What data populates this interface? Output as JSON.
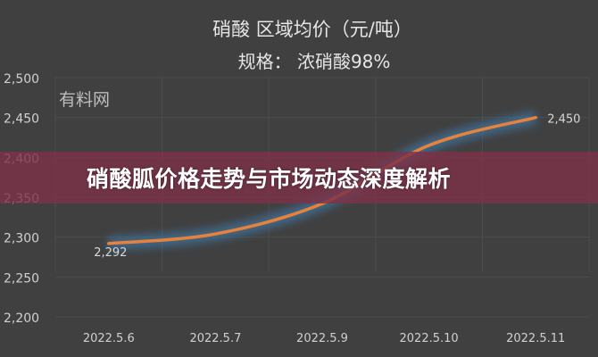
{
  "chart_data": {
    "type": "line",
    "title": "硝酸  区域均价（元/吨）",
    "subtitle": "规格：  浓硝酸98%",
    "watermark": "有料网",
    "categories": [
      "2022.5.6",
      "2022.5.7",
      "2022.5.9",
      "2022.5.10",
      "2022.5.11"
    ],
    "series": [
      {
        "values": [
          2292,
          2304,
          2342,
          2415,
          2450
        ]
      }
    ],
    "data_labels": [
      {
        "index": 0,
        "text": "2,292"
      },
      {
        "index": 4,
        "text": "2,450"
      }
    ],
    "y_ticks": [
      "2,200",
      "2,250",
      "2,300",
      "2,350",
      "2,400",
      "2,450",
      "2,500"
    ],
    "ylim": [
      2200,
      2500
    ],
    "grid": true,
    "line_color": "#e8823a",
    "glow_color": "#3f6f96"
  },
  "banner": {
    "text": "硝酸胍价格走势与市场动态深度解析",
    "color": "#7d3248"
  }
}
